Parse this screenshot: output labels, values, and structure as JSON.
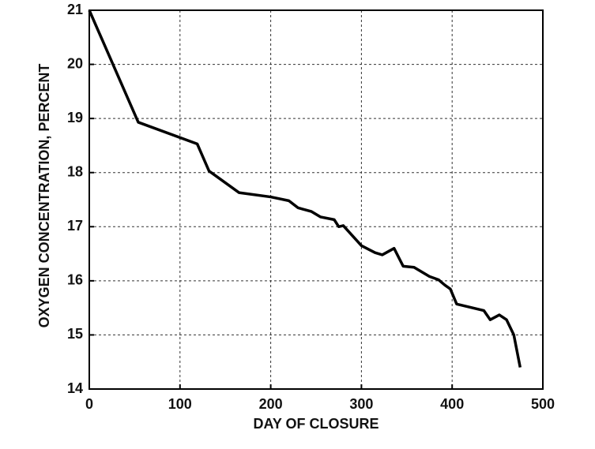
{
  "chart_data": {
    "type": "line",
    "xlabel": "DAY OF CLOSURE",
    "ylabel": "OXYGEN CONCENTRATION, PERCENT",
    "x": [
      0,
      54,
      119,
      132,
      165,
      200,
      220,
      230,
      245,
      255,
      270,
      275,
      280,
      300,
      315,
      323,
      336,
      346,
      358,
      375,
      385,
      392,
      398,
      405,
      435,
      442,
      452,
      460,
      468,
      475
    ],
    "series": [
      {
        "color": "#000000",
        "values": [
          21,
          18.93,
          18.53,
          18.03,
          17.63,
          17.55,
          17.48,
          17.35,
          17.28,
          17.18,
          17.13,
          17.0,
          17.02,
          16.65,
          16.52,
          16.48,
          16.6,
          16.27,
          16.25,
          16.08,
          16.02,
          15.92,
          15.85,
          15.57,
          15.45,
          15.28,
          15.37,
          15.28,
          15.0,
          14.4
        ]
      }
    ],
    "xlim": [
      0,
      500
    ],
    "xticks": [
      0,
      100,
      200,
      300,
      400,
      500
    ],
    "ylim": [
      14,
      21
    ],
    "yticks": [
      14,
      15,
      16,
      17,
      18,
      19,
      20,
      21
    ],
    "grid": true
  }
}
